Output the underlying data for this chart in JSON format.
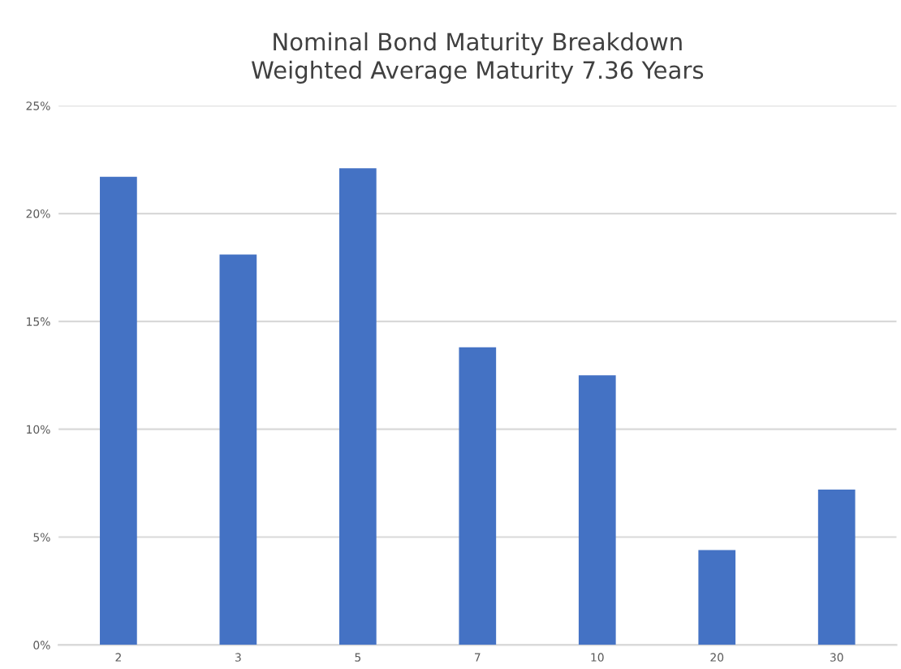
{
  "chart_data": {
    "type": "bar",
    "title": "Nominal Bond Maturity Breakdown\nWeighted Average Maturity 7.36 Years",
    "categories": [
      "2",
      "3",
      "5",
      "7",
      "10",
      "20",
      "30"
    ],
    "values": [
      21.7,
      18.1,
      22.1,
      13.8,
      12.5,
      4.4,
      7.2
    ],
    "color": "#4472c4",
    "ylim": [
      0,
      25
    ],
    "yticks": [
      {
        "value": 0,
        "label": "0%"
      },
      {
        "value": 5,
        "label": "5%"
      },
      {
        "value": 10,
        "label": "10%"
      },
      {
        "value": 15,
        "label": "15%"
      },
      {
        "value": 20,
        "label": "20%"
      },
      {
        "value": 25,
        "label": "25%"
      }
    ],
    "grid": "y"
  }
}
